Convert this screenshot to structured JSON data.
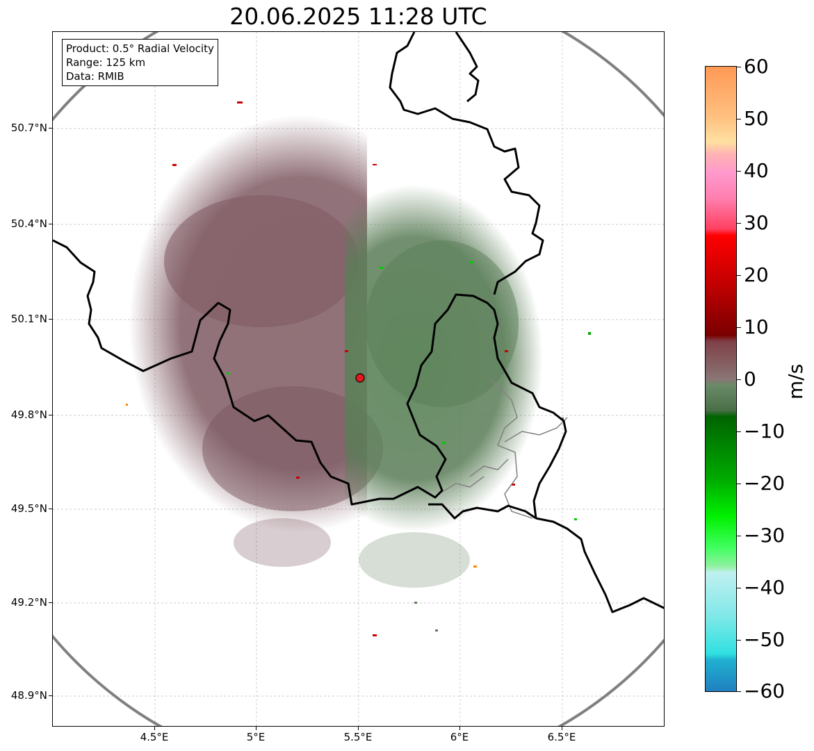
{
  "title": "20.06.2025 11:28 UTC",
  "info": {
    "product": "Product: 0.5° Radial Velocity",
    "range": "Range: 125 km",
    "data": "Data: RMIB"
  },
  "axes": {
    "lon_ticks": [
      "4.5°E",
      "5°E",
      "5.5°E",
      "6°E",
      "6.5°E"
    ],
    "lat_ticks": [
      "50.7°N",
      "50.4°N",
      "50.1°N",
      "49.8°N",
      "49.5°N",
      "49.2°N",
      "48.9°N"
    ]
  },
  "colorbar": {
    "unit": "m/s",
    "ticks": [
      "60",
      "50",
      "40",
      "30",
      "20",
      "10",
      "0",
      "−10",
      "−20",
      "−30",
      "−40",
      "−50",
      "−60"
    ],
    "min": -60,
    "max": 60
  },
  "radar_site": {
    "lon": 5.505,
    "lat": 49.914,
    "color": "#e41a1c"
  },
  "colors": {
    "outbound": "#7f5a63",
    "inbound": "#5a7d57",
    "range_ring": "#808080",
    "border": "#000000"
  }
}
